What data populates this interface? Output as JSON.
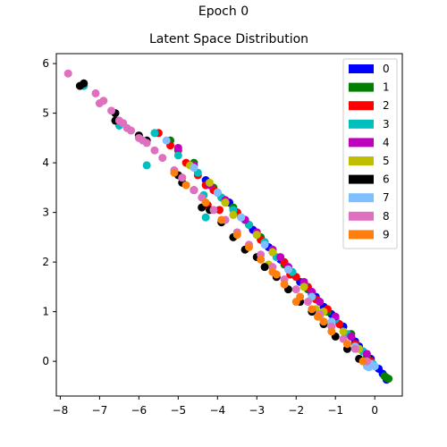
{
  "figure": {
    "suptitle": "Epoch 0"
  },
  "chart_data": {
    "type": "scatter",
    "title": "Latent Space Distribution",
    "xlabel": "",
    "ylabel": "",
    "xlim": [
      -8.1,
      0.7
    ],
    "ylim": [
      -0.7,
      6.2
    ],
    "xticks": [
      -8,
      -7,
      -6,
      -5,
      -4,
      -3,
      -2,
      -1,
      0
    ],
    "yticks": [
      0,
      1,
      2,
      3,
      4,
      5,
      6
    ],
    "grid": false,
    "legend_position": "top-right",
    "series": [
      {
        "name": "0",
        "color": "#0000ff",
        "points": [
          [
            0.3,
            -0.37
          ],
          [
            0.2,
            -0.25
          ],
          [
            0.1,
            -0.15
          ],
          [
            -0.1,
            0.05
          ],
          [
            -0.3,
            0.2
          ],
          [
            -0.5,
            0.4
          ],
          [
            -0.8,
            0.7
          ],
          [
            -1.0,
            0.85
          ],
          [
            -1.3,
            1.1
          ],
          [
            -1.6,
            1.35
          ],
          [
            -1.9,
            1.6
          ],
          [
            -2.1,
            1.8
          ],
          [
            -2.4,
            2.05
          ],
          [
            -2.6,
            2.25
          ],
          [
            -2.8,
            2.4
          ],
          [
            -3.1,
            2.65
          ],
          [
            -3.3,
            2.85
          ],
          [
            -3.5,
            3.0
          ],
          [
            -3.7,
            3.2
          ],
          [
            -4.0,
            3.4
          ],
          [
            -4.3,
            3.65
          ],
          [
            -0.2,
            0.1
          ],
          [
            -0.4,
            0.3
          ],
          [
            -0.6,
            0.5
          ],
          [
            -1.1,
            0.95
          ],
          [
            -1.5,
            1.3
          ],
          [
            -2.2,
            1.9
          ],
          [
            -2.7,
            2.3
          ]
        ]
      },
      {
        "name": "1",
        "color": "#008000",
        "points": [
          [
            0.35,
            -0.35
          ],
          [
            0.25,
            -0.3
          ],
          [
            0.3,
            -0.33
          ],
          [
            -0.2,
            0.1
          ],
          [
            -1.2,
            1.0
          ],
          [
            -2.3,
            1.95
          ],
          [
            -3.0,
            2.55
          ],
          [
            -3.6,
            3.1
          ],
          [
            -4.1,
            3.5
          ],
          [
            -4.6,
            4.0
          ],
          [
            -5.2,
            4.45
          ],
          [
            -0.6,
            0.55
          ],
          [
            -1.7,
            1.45
          ],
          [
            -2.9,
            2.5
          ],
          [
            -3.9,
            3.3
          ]
        ]
      },
      {
        "name": "2",
        "color": "#ff0000",
        "points": [
          [
            -0.1,
            0.0
          ],
          [
            -0.5,
            0.35
          ],
          [
            -0.9,
            0.75
          ],
          [
            -1.2,
            1.05
          ],
          [
            -1.5,
            1.25
          ],
          [
            -1.7,
            1.5
          ],
          [
            -2.0,
            1.7
          ],
          [
            -2.3,
            2.0
          ],
          [
            -2.6,
            2.2
          ],
          [
            -2.9,
            2.45
          ],
          [
            -3.2,
            2.75
          ],
          [
            -3.5,
            3.0
          ],
          [
            -3.8,
            3.2
          ],
          [
            -4.1,
            3.45
          ],
          [
            -4.3,
            3.55
          ],
          [
            -4.5,
            3.75
          ],
          [
            -4.8,
            4.0
          ],
          [
            -5.0,
            4.25
          ],
          [
            -5.2,
            4.35
          ],
          [
            -5.5,
            4.6
          ],
          [
            -3.95,
            3.05
          ],
          [
            -4.25,
            3.15
          ],
          [
            -4.9,
            3.7
          ],
          [
            -2.15,
            1.75
          ]
        ]
      },
      {
        "name": "3",
        "color": "#00bfbf",
        "points": [
          [
            -0.05,
            -0.05
          ],
          [
            -0.3,
            0.2
          ],
          [
            -0.7,
            0.55
          ],
          [
            -1.0,
            0.85
          ],
          [
            -1.4,
            1.2
          ],
          [
            -1.8,
            1.55
          ],
          [
            -2.1,
            1.8
          ],
          [
            -2.5,
            2.1
          ],
          [
            -2.8,
            2.4
          ],
          [
            -3.2,
            2.75
          ],
          [
            -3.6,
            3.05
          ],
          [
            -3.9,
            3.3
          ],
          [
            -4.3,
            2.9
          ],
          [
            -4.5,
            3.8
          ],
          [
            -5.0,
            4.15
          ],
          [
            -5.6,
            4.6
          ],
          [
            -5.8,
            3.95
          ],
          [
            -6.5,
            4.75
          ],
          [
            -7.4,
            5.55
          ],
          [
            -4.35,
            3.35
          ]
        ]
      },
      {
        "name": "4",
        "color": "#bf00bf",
        "points": [
          [
            -0.2,
            0.15
          ],
          [
            -0.6,
            0.5
          ],
          [
            -1.0,
            0.9
          ],
          [
            -1.4,
            1.2
          ],
          [
            -1.8,
            1.6
          ],
          [
            -2.2,
            1.9
          ],
          [
            -2.6,
            2.25
          ],
          [
            -3.0,
            2.6
          ],
          [
            -3.4,
            2.9
          ],
          [
            -3.8,
            3.25
          ],
          [
            -4.2,
            3.55
          ],
          [
            -4.6,
            3.95
          ],
          [
            -5.0,
            4.3
          ],
          [
            -1.6,
            1.4
          ],
          [
            -2.4,
            2.1
          ],
          [
            -3.3,
            2.85
          ]
        ]
      },
      {
        "name": "5",
        "color": "#bfbf00",
        "points": [
          [
            -0.4,
            0.25
          ],
          [
            -0.8,
            0.6
          ],
          [
            -1.3,
            1.0
          ],
          [
            -1.5,
            1.05
          ],
          [
            -1.8,
            1.5
          ],
          [
            -2.2,
            1.85
          ],
          [
            -2.6,
            2.2
          ],
          [
            -3.0,
            2.55
          ],
          [
            -3.4,
            2.9
          ],
          [
            -3.8,
            3.2
          ],
          [
            -4.2,
            3.6
          ],
          [
            -4.7,
            3.95
          ],
          [
            -1.4,
            0.9
          ],
          [
            -2.7,
            1.95
          ],
          [
            -3.6,
            2.95
          ]
        ]
      },
      {
        "name": "6",
        "color": "#000000",
        "points": [
          [
            -7.4,
            5.6
          ],
          [
            -7.5,
            5.55
          ],
          [
            -6.6,
            5.0
          ],
          [
            -6.6,
            4.85
          ],
          [
            -6.0,
            4.55
          ],
          [
            -5.8,
            4.45
          ],
          [
            -5.0,
            3.75
          ],
          [
            -4.9,
            3.6
          ],
          [
            -4.4,
            3.1
          ],
          [
            -4.2,
            3.05
          ],
          [
            -3.9,
            2.8
          ],
          [
            -3.6,
            2.5
          ],
          [
            -3.3,
            2.25
          ],
          [
            -3.0,
            2.1
          ],
          [
            -2.8,
            1.9
          ],
          [
            -2.5,
            1.7
          ],
          [
            -2.2,
            1.45
          ],
          [
            -1.9,
            1.2
          ],
          [
            -1.6,
            1.0
          ],
          [
            -1.3,
            0.75
          ],
          [
            -1.0,
            0.5
          ],
          [
            -0.7,
            0.25
          ],
          [
            -0.4,
            0.05
          ],
          [
            -4.6,
            3.45
          ]
        ]
      },
      {
        "name": "7",
        "color": "#7fbfff",
        "points": [
          [
            -0.2,
            -0.1
          ],
          [
            -0.1,
            -0.05
          ],
          [
            0.0,
            -0.1
          ],
          [
            -0.5,
            0.3
          ],
          [
            -1.1,
            0.8
          ],
          [
            -1.6,
            1.3
          ],
          [
            -2.2,
            1.85
          ],
          [
            -2.8,
            2.35
          ],
          [
            -3.4,
            2.9
          ],
          [
            -4.0,
            3.4
          ],
          [
            -4.6,
            3.9
          ],
          [
            -5.3,
            4.45
          ],
          [
            -0.15,
            -0.12
          ]
        ]
      },
      {
        "name": "8",
        "color": "#df6fbf",
        "points": [
          [
            -7.8,
            5.8
          ],
          [
            -7.1,
            5.4
          ],
          [
            -7.0,
            5.2
          ],
          [
            -6.7,
            5.05
          ],
          [
            -6.5,
            4.85
          ],
          [
            -6.3,
            4.7
          ],
          [
            -6.2,
            4.65
          ],
          [
            -6.0,
            4.5
          ],
          [
            -5.8,
            4.4
          ],
          [
            -5.6,
            4.25
          ],
          [
            -5.4,
            4.1
          ],
          [
            -5.1,
            3.85
          ],
          [
            -4.9,
            3.7
          ],
          [
            -4.6,
            3.45
          ],
          [
            -4.4,
            3.3
          ],
          [
            -4.1,
            3.05
          ],
          [
            -3.8,
            2.85
          ],
          [
            -3.5,
            2.6
          ],
          [
            -3.2,
            2.35
          ],
          [
            -2.9,
            2.15
          ],
          [
            -2.6,
            1.9
          ],
          [
            -2.3,
            1.65
          ],
          [
            -2.0,
            1.45
          ],
          [
            -1.7,
            1.2
          ],
          [
            -1.4,
            0.95
          ],
          [
            -1.1,
            0.7
          ],
          [
            -0.8,
            0.45
          ],
          [
            -0.5,
            0.25
          ],
          [
            -0.2,
            0.0
          ],
          [
            -6.9,
            5.25
          ],
          [
            -6.4,
            4.8
          ],
          [
            -5.9,
            4.45
          ]
        ]
      },
      {
        "name": "9",
        "color": "#ff7f0e",
        "points": [
          [
            -0.3,
            0.0
          ],
          [
            -0.7,
            0.35
          ],
          [
            -1.1,
            0.6
          ],
          [
            -1.3,
            0.8
          ],
          [
            -1.6,
            1.05
          ],
          [
            -1.9,
            1.3
          ],
          [
            -2.0,
            1.2
          ],
          [
            -2.3,
            1.55
          ],
          [
            -2.6,
            1.8
          ],
          [
            -2.9,
            2.05
          ],
          [
            -3.2,
            2.3
          ],
          [
            -3.5,
            2.55
          ],
          [
            -3.9,
            2.85
          ],
          [
            -4.3,
            3.2
          ],
          [
            -4.8,
            3.55
          ],
          [
            -5.1,
            3.8
          ],
          [
            -1.45,
            0.9
          ],
          [
            -2.5,
            1.75
          ]
        ]
      }
    ]
  }
}
